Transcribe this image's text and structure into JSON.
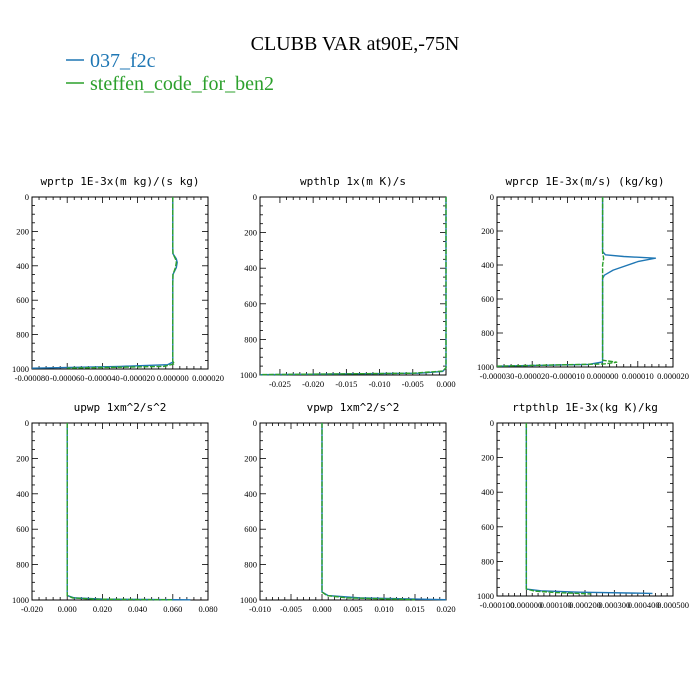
{
  "figure": {
    "title": "CLUBB VAR at90E,-75N",
    "legend": [
      {
        "name": "037_f2c",
        "color": "#1f77b4"
      },
      {
        "name": "steffen_code_for_ben2",
        "color": "#2ca02c"
      }
    ]
  },
  "chart_data": [
    {
      "type": "line",
      "title": "wprtp  1E-3x(m kg)/(s kg)",
      "xlim": [
        -8e-05,
        2e-05
      ],
      "ylim": [
        1000,
        0
      ],
      "xticks": [
        -8e-05,
        -6e-05,
        -4e-05,
        -2e-05,
        0,
        2e-05
      ],
      "xtick_labels": [
        "-0.000080",
        "-0.000060",
        "-0.000040",
        "-0.000020",
        "0.000000",
        "0.000020"
      ],
      "yticks": [
        0,
        200,
        400,
        600,
        800,
        1000
      ],
      "series": [
        {
          "name": "037_f2c",
          "x": [
            0,
            0,
            1e-07,
            2e-06,
            2.5e-06,
            2e-06,
            1e-07,
            0,
            0,
            -3e-06,
            -3e-05,
            -8e-05
          ],
          "y": [
            0,
            300,
            330,
            360,
            380,
            410,
            450,
            500,
            960,
            975,
            985,
            995
          ]
        },
        {
          "name": "steffen_code_for_ben2",
          "x": [
            0,
            0,
            1e-07,
            1.5e-06,
            2e-06,
            1.5e-06,
            1e-07,
            0,
            0,
            1e-06,
            -5e-06,
            -6e-05
          ],
          "y": [
            0,
            300,
            330,
            360,
            380,
            410,
            450,
            500,
            955,
            970,
            985,
            995
          ]
        }
      ]
    },
    {
      "type": "line",
      "title": "wpthlp  1x(m K)/s",
      "xlim": [
        -0.028,
        0
      ],
      "ylim": [
        1000,
        0
      ],
      "xticks": [
        -0.025,
        -0.02,
        -0.015,
        -0.01,
        -0.005,
        0
      ],
      "xtick_labels": [
        "-0.025",
        "-0.020",
        "-0.015",
        "-0.010",
        "-0.005",
        "0.000"
      ],
      "yticks": [
        0,
        200,
        400,
        600,
        800,
        1000
      ],
      "series": [
        {
          "name": "037_f2c",
          "x": [
            0,
            0,
            -0.0005,
            -0.004,
            -0.028
          ],
          "y": [
            0,
            960,
            980,
            990,
            998
          ]
        },
        {
          "name": "steffen_code_for_ben2",
          "x": [
            0,
            0,
            -0.0005,
            -0.005,
            -0.028
          ],
          "y": [
            0,
            960,
            978,
            990,
            998
          ]
        }
      ]
    },
    {
      "type": "line",
      "title": "wprcp  1E-3x(m/s) (kg/kg)",
      "xlim": [
        -3e-05,
        2e-05
      ],
      "ylim": [
        1000,
        0
      ],
      "xticks": [
        -3e-05,
        -2e-05,
        -1e-05,
        0,
        1e-05,
        2e-05
      ],
      "xtick_labels": [
        "-0.000030",
        "-0.000020",
        "-0.000010",
        "0.000000",
        "0.000010",
        "0.000020"
      ],
      "yticks": [
        0,
        200,
        400,
        600,
        800,
        1000
      ],
      "series": [
        {
          "name": "037_f2c",
          "x": [
            0,
            0,
            8e-07,
            6e-06,
            1.5e-05,
            1e-05,
            3e-06,
            5e-07,
            0,
            0,
            -4e-06,
            -3e-05
          ],
          "y": [
            0,
            320,
            340,
            350,
            360,
            380,
            430,
            460,
            480,
            970,
            985,
            995
          ]
        },
        {
          "name": "steffen_code_for_ben2",
          "x": [
            0,
            0,
            3e-07,
            0,
            0,
            4e-06,
            5e-07,
            -3e-05
          ],
          "y": [
            0,
            330,
            360,
            400,
            960,
            972,
            982,
            995
          ]
        }
      ]
    },
    {
      "type": "line",
      "title": "upwp  1xm^2/s^2",
      "xlim": [
        -0.02,
        0.08
      ],
      "ylim": [
        1000,
        0
      ],
      "xticks": [
        -0.02,
        0,
        0.02,
        0.04,
        0.06,
        0.08
      ],
      "xtick_labels": [
        "-0.020",
        "0.000",
        "0.020",
        "0.040",
        "0.060",
        "0.080"
      ],
      "yticks": [
        0,
        200,
        400,
        600,
        800,
        1000
      ],
      "series": [
        {
          "name": "037_f2c",
          "x": [
            0,
            0,
            0.004,
            0.02,
            0.07
          ],
          "y": [
            0,
            975,
            988,
            995,
            999
          ]
        },
        {
          "name": "steffen_code_for_ben2",
          "x": [
            0,
            0,
            0.003,
            0.015,
            0.06
          ],
          "y": [
            0,
            975,
            988,
            995,
            999
          ]
        }
      ]
    },
    {
      "type": "line",
      "title": "vpwp  1xm^2/s^2",
      "xlim": [
        -0.01,
        0.02
      ],
      "ylim": [
        1000,
        0
      ],
      "xticks": [
        -0.01,
        -0.005,
        0,
        0.005,
        0.01,
        0.015,
        0.02
      ],
      "xtick_labels": [
        "-0.010",
        "-0.005",
        "0.000",
        "0.005",
        "0.010",
        "0.015",
        "0.020"
      ],
      "yticks": [
        0,
        200,
        400,
        600,
        800,
        1000
      ],
      "series": [
        {
          "name": "037_f2c",
          "x": [
            0,
            0,
            0.001,
            0.006,
            0.02
          ],
          "y": [
            0,
            955,
            975,
            988,
            998
          ]
        },
        {
          "name": "steffen_code_for_ben2",
          "x": [
            0,
            0,
            0.0008,
            0.004,
            0.015
          ],
          "y": [
            0,
            955,
            975,
            988,
            998
          ]
        }
      ]
    },
    {
      "type": "line",
      "title": "rtpthlp  1E-3x(kg K)/kg",
      "xlim": [
        -0.0001,
        0.0005
      ],
      "ylim": [
        1000,
        0
      ],
      "xticks": [
        -0.0001,
        0,
        0.0001,
        0.0002,
        0.0003,
        0.0004,
        0.0005
      ],
      "xtick_labels": [
        "-0.000100",
        "0.000000",
        "0.000100",
        "0.000200",
        "0.000300",
        "0.000400",
        "0.000500"
      ],
      "yticks": [
        0,
        200,
        400,
        600,
        800,
        1000
      ],
      "series": [
        {
          "name": "037_f2c",
          "x": [
            0,
            0,
            5e-05,
            0.00018,
            0.00043
          ],
          "y": [
            0,
            960,
            970,
            978,
            985
          ]
        },
        {
          "name": "steffen_code_for_ben2",
          "x": [
            0,
            0,
            3e-05,
            0.0001,
            0.00022
          ],
          "y": [
            0,
            960,
            972,
            980,
            988
          ]
        }
      ]
    }
  ]
}
